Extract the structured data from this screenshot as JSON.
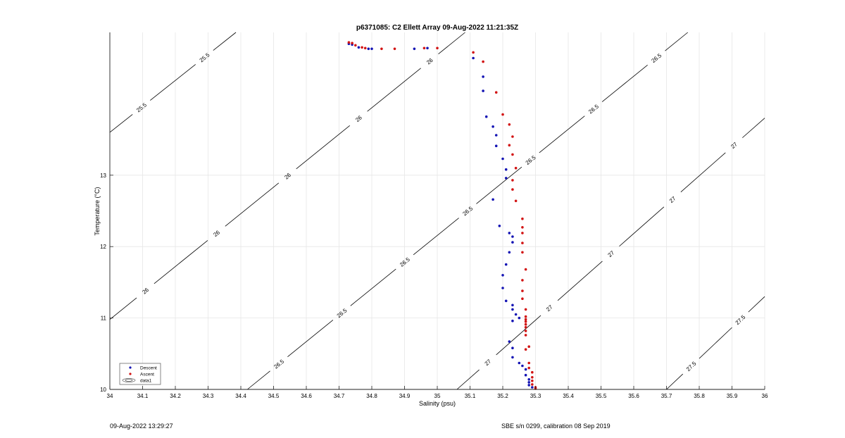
{
  "chart_data": {
    "type": "scatter",
    "title": "p6371085: C2 Ellett Array 09-Aug-2022 11:21:35Z",
    "xlabel": "Salinity (psu)",
    "ylabel": "Temperature (°C)",
    "xlim": [
      34,
      36
    ],
    "ylim": [
      10,
      15
    ],
    "xticks": [
      "34",
      "34.1",
      "34.2",
      "34.3",
      "34.4",
      "34.5",
      "34.6",
      "34.7",
      "34.8",
      "34.9",
      "35",
      "35.1",
      "35.2",
      "35.3",
      "35.4",
      "35.5",
      "35.6",
      "35.7",
      "35.8",
      "35.9",
      "36"
    ],
    "yticks": [
      "10",
      "11",
      "12",
      "13"
    ],
    "grid": true,
    "legend": {
      "location": "bottom-left",
      "entries": [
        "Descent",
        "Ascent",
        "data1"
      ]
    },
    "series": [
      {
        "name": "Descent",
        "color": "#1414b4",
        "points": [
          [
            34.73,
            14.84
          ],
          [
            34.74,
            14.83
          ],
          [
            34.76,
            14.79
          ],
          [
            34.79,
            14.77
          ],
          [
            34.8,
            14.77
          ],
          [
            34.93,
            14.77
          ],
          [
            34.97,
            14.78
          ],
          [
            35.11,
            14.64
          ],
          [
            35.14,
            14.38
          ],
          [
            35.14,
            14.18
          ],
          [
            35.15,
            13.82
          ],
          [
            35.17,
            13.68
          ],
          [
            35.18,
            13.56
          ],
          [
            35.18,
            13.41
          ],
          [
            35.2,
            13.23
          ],
          [
            35.21,
            13.08
          ],
          [
            35.21,
            12.96
          ],
          [
            35.17,
            12.66
          ],
          [
            35.19,
            12.29
          ],
          [
            35.22,
            12.19
          ],
          [
            35.23,
            12.14
          ],
          [
            35.23,
            12.06
          ],
          [
            35.22,
            11.92
          ],
          [
            35.21,
            11.75
          ],
          [
            35.2,
            11.6
          ],
          [
            35.2,
            11.42
          ],
          [
            35.21,
            11.24
          ],
          [
            35.23,
            11.18
          ],
          [
            35.23,
            11.12
          ],
          [
            35.24,
            11.05
          ],
          [
            35.25,
            11.0
          ],
          [
            35.23,
            10.96
          ],
          [
            35.22,
            10.67
          ],
          [
            35.23,
            10.58
          ],
          [
            35.23,
            10.45
          ],
          [
            35.25,
            10.37
          ],
          [
            35.26,
            10.33
          ],
          [
            35.27,
            10.28
          ],
          [
            35.27,
            10.2
          ],
          [
            35.28,
            10.14
          ],
          [
            35.28,
            10.1
          ],
          [
            35.28,
            10.06
          ],
          [
            35.29,
            10.03
          ]
        ]
      },
      {
        "name": "Ascent",
        "color": "#d21414",
        "points": [
          [
            34.73,
            14.86
          ],
          [
            34.74,
            14.85
          ],
          [
            34.75,
            14.82
          ],
          [
            34.77,
            14.79
          ],
          [
            34.78,
            14.78
          ],
          [
            34.83,
            14.77
          ],
          [
            34.87,
            14.77
          ],
          [
            34.96,
            14.78
          ],
          [
            35.0,
            14.78
          ],
          [
            35.11,
            14.72
          ],
          [
            35.14,
            14.59
          ],
          [
            35.18,
            14.16
          ],
          [
            35.2,
            13.85
          ],
          [
            35.22,
            13.71
          ],
          [
            35.23,
            13.54
          ],
          [
            35.22,
            13.42
          ],
          [
            35.23,
            13.29
          ],
          [
            35.24,
            13.1
          ],
          [
            35.23,
            12.93
          ],
          [
            35.23,
            12.8
          ],
          [
            35.24,
            12.64
          ],
          [
            35.26,
            12.39
          ],
          [
            35.26,
            12.27
          ],
          [
            35.26,
            12.19
          ],
          [
            35.26,
            12.05
          ],
          [
            35.26,
            11.92
          ],
          [
            35.27,
            11.68
          ],
          [
            35.26,
            11.53
          ],
          [
            35.26,
            11.38
          ],
          [
            35.26,
            11.27
          ],
          [
            35.27,
            11.12
          ],
          [
            35.27,
            11.02
          ],
          [
            35.27,
            10.98
          ],
          [
            35.27,
            10.95
          ],
          [
            35.27,
            10.91
          ],
          [
            35.27,
            10.87
          ],
          [
            35.27,
            10.82
          ],
          [
            35.27,
            10.76
          ],
          [
            35.27,
            10.56
          ],
          [
            35.28,
            10.6
          ],
          [
            35.28,
            10.37
          ],
          [
            35.28,
            10.3
          ],
          [
            35.29,
            10.24
          ],
          [
            35.29,
            10.17
          ],
          [
            35.29,
            10.12
          ],
          [
            35.29,
            10.07
          ],
          [
            35.3,
            10.03
          ],
          [
            35.3,
            10.01
          ]
        ]
      }
    ],
    "contour_style": {
      "color": "#000000"
    },
    "density_contours": [
      {
        "value": 25.5,
        "labels": [
          "25.5",
          "25.5"
        ],
        "line": [
          [
            34.0,
            13.6
          ],
          [
            34.385,
            15.0
          ]
        ]
      },
      {
        "value": 26,
        "labels": [
          "26",
          "26",
          "26",
          "26",
          "26"
        ],
        "line": [
          [
            34.0,
            10.98
          ],
          [
            35.085,
            15.0
          ]
        ]
      },
      {
        "value": 26.5,
        "labels": [
          "26.5",
          "26.5",
          "26.5",
          "26.5",
          "26.5",
          "26.5",
          "26.5"
        ],
        "line": [
          [
            34.42,
            10.0
          ],
          [
            35.765,
            15.0
          ]
        ]
      },
      {
        "value": 27,
        "labels": [
          "27",
          "27",
          "27",
          "27",
          "27"
        ],
        "line": [
          [
            35.06,
            10.0
          ],
          [
            36.0,
            13.8
          ]
        ]
      },
      {
        "value": 27.5,
        "labels": [
          "27.5",
          "27.5"
        ],
        "line": [
          [
            35.7,
            10.0
          ],
          [
            36.0,
            11.3
          ]
        ]
      }
    ]
  },
  "footer": {
    "left": "09-Aug-2022 13:29:27",
    "right": "SBE s/n 0299, calibration 08 Sep 2019"
  }
}
